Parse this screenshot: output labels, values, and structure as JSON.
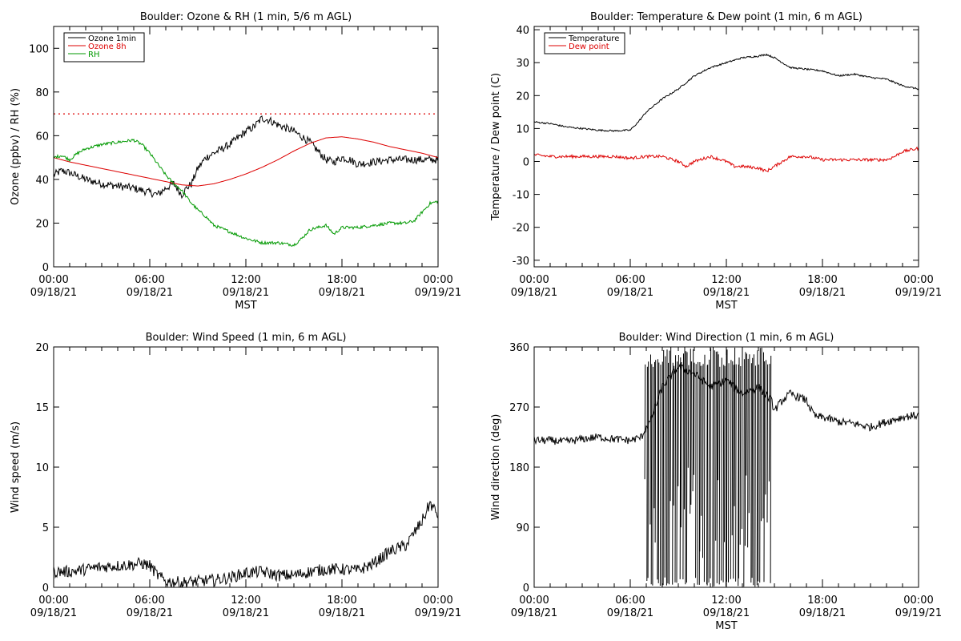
{
  "chart_data": [
    {
      "id": "ozone",
      "type": "line",
      "title": "Boulder: Ozone & RH (1 min, 5/6 m AGL)",
      "xlabel": "MST",
      "ylabel": "Ozone (ppbv) / RH (%)",
      "xlim": [
        0,
        24
      ],
      "ylim": [
        0,
        110
      ],
      "yticks": [
        0,
        20,
        40,
        60,
        80,
        100
      ],
      "xticks": [
        {
          "h": 0,
          "time": "00:00",
          "date": "09/18/21"
        },
        {
          "h": 6,
          "time": "06:00",
          "date": "09/18/21"
        },
        {
          "h": 12,
          "time": "12:00",
          "date": "09/18/21"
        },
        {
          "h": 18,
          "time": "18:00",
          "date": "09/18/21"
        },
        {
          "h": 24,
          "time": "00:00",
          "date": "09/19/21"
        }
      ],
      "legend_position": "top-left",
      "reference_line": {
        "y": 70,
        "color": "#dd0000",
        "style": "dotted"
      },
      "series": [
        {
          "name": "Ozone 1min",
          "color": "#000000",
          "noise": 1.8,
          "x": [
            0,
            0.5,
            1,
            2,
            3,
            4,
            5,
            6,
            6.5,
            7,
            7.5,
            8,
            8.3,
            8.6,
            9,
            9.5,
            10,
            11,
            12,
            12.5,
            13,
            13.5,
            14,
            15,
            16,
            16.5,
            17,
            17.5,
            18,
            18.5,
            19,
            20,
            21,
            22,
            23,
            24
          ],
          "y": [
            42,
            44,
            43,
            40,
            38,
            37,
            36,
            34,
            33,
            36,
            38,
            33,
            36,
            38,
            45,
            50,
            52,
            56,
            62,
            64,
            68,
            67,
            65,
            62,
            57,
            53,
            49,
            48,
            50,
            49,
            47,
            48,
            49,
            49,
            49,
            49
          ]
        },
        {
          "name": "Ozone 8h",
          "color": "#dd0000",
          "noise": 0,
          "x": [
            0,
            1,
            2,
            3,
            4,
            5,
            6,
            7,
            8,
            9,
            10,
            11,
            12,
            13,
            14,
            15,
            16,
            17,
            18,
            19,
            20,
            21,
            22,
            23,
            24
          ],
          "y": [
            50,
            48,
            46.5,
            45,
            43.5,
            42,
            40.5,
            39,
            37.5,
            37,
            38,
            40,
            42.5,
            45.5,
            49,
            53,
            56.5,
            59,
            59.5,
            58.5,
            57,
            55,
            53.5,
            52,
            50
          ]
        },
        {
          "name": "RH",
          "color": "#009900",
          "noise": 0.7,
          "x": [
            0,
            0.5,
            1,
            1.5,
            2,
            3,
            4,
            5,
            5.5,
            6,
            6.5,
            7,
            7.5,
            8,
            8.5,
            9,
            9.5,
            10,
            11,
            12,
            12.5,
            13,
            14,
            15,
            15.5,
            16,
            17,
            17.5,
            18,
            19,
            20,
            21,
            22,
            22.5,
            23,
            23.5,
            24
          ],
          "y": [
            50,
            51,
            49,
            52,
            54,
            56,
            57,
            58,
            56,
            52,
            47,
            42,
            38,
            35,
            30,
            26,
            23,
            19,
            16,
            13,
            12,
            11,
            11,
            10,
            13,
            17,
            19,
            15,
            18,
            18,
            19,
            20,
            20,
            21,
            25,
            29,
            30
          ]
        }
      ]
    },
    {
      "id": "temp",
      "type": "line",
      "title": "Boulder: Temperature & Dew point (1 min, 6 m AGL)",
      "xlabel": "MST",
      "ylabel": "Temperature / Dew point (C)",
      "xlim": [
        0,
        24
      ],
      "ylim": [
        -32,
        41
      ],
      "yticks": [
        -30,
        -20,
        -10,
        0,
        10,
        20,
        30,
        40
      ],
      "xticks": [
        {
          "h": 0,
          "time": "00:00",
          "date": "09/18/21"
        },
        {
          "h": 6,
          "time": "06:00",
          "date": "09/18/21"
        },
        {
          "h": 12,
          "time": "12:00",
          "date": "09/18/21"
        },
        {
          "h": 18,
          "time": "18:00",
          "date": "09/18/21"
        },
        {
          "h": 24,
          "time": "00:00",
          "date": "09/19/21"
        }
      ],
      "legend_position": "top-left",
      "series": [
        {
          "name": "Temperature",
          "color": "#000000",
          "noise": 0.25,
          "x": [
            0,
            1,
            2,
            3,
            4,
            5,
            6,
            6.5,
            7,
            8,
            9,
            10,
            11,
            12,
            13,
            14,
            14.5,
            15,
            15.5,
            16,
            17,
            18,
            19,
            20,
            21,
            22,
            23,
            24
          ],
          "y": [
            12,
            11.5,
            10.5,
            10,
            9.5,
            9.3,
            9.5,
            12,
            15,
            19,
            22,
            26,
            28.5,
            30,
            31.5,
            32,
            32.5,
            31.5,
            30,
            28.5,
            28,
            27.5,
            26,
            26.5,
            25.5,
            25,
            23,
            22
          ]
        },
        {
          "name": "Dew point",
          "color": "#dd0000",
          "noise": 0.45,
          "x": [
            0,
            1,
            2,
            3,
            4,
            5,
            6,
            7,
            8,
            9,
            9.5,
            10,
            11,
            12,
            12.5,
            13,
            14,
            14.5,
            15,
            15.5,
            16,
            17,
            18,
            19,
            20,
            21,
            22,
            22.5,
            23,
            24
          ],
          "y": [
            2,
            1.5,
            1.5,
            1.5,
            1.5,
            1.5,
            1,
            1.5,
            1.5,
            0,
            -1.5,
            0,
            1.5,
            0,
            -1.5,
            -1.5,
            -2,
            -3,
            -1.5,
            0,
            1.5,
            1.5,
            0.5,
            0.5,
            0.5,
            0.5,
            0.5,
            1.5,
            3,
            4
          ]
        }
      ]
    },
    {
      "id": "wspd",
      "type": "line",
      "title": "Boulder: Wind Speed (1 min, 6 m AGL)",
      "xlabel": "",
      "ylabel": "Wind speed (m/s)",
      "xlim": [
        0,
        24
      ],
      "ylim": [
        0,
        20
      ],
      "yticks": [
        0,
        5,
        10,
        15,
        20
      ],
      "xticks": [
        {
          "h": 0,
          "time": "00:00",
          "date": "09/18/21"
        },
        {
          "h": 6,
          "time": "06:00",
          "date": "09/18/21"
        },
        {
          "h": 12,
          "time": "12:00",
          "date": "09/18/21"
        },
        {
          "h": 18,
          "time": "18:00",
          "date": "09/18/21"
        },
        {
          "h": 24,
          "time": "00:00",
          "date": "09/19/21"
        }
      ],
      "series": [
        {
          "name": "",
          "color": "#000000",
          "noise": 0.5,
          "x": [
            0,
            1,
            2,
            3,
            4,
            5,
            5.5,
            6,
            6.5,
            7,
            8,
            9,
            10,
            11,
            12,
            13,
            14,
            15,
            16,
            17,
            18,
            19,
            20,
            21,
            22,
            22.5,
            23,
            23.5,
            24
          ],
          "y": [
            1.3,
            1.3,
            1.5,
            1.7,
            1.8,
            1.9,
            2,
            1.8,
            1,
            0.5,
            0.4,
            0.5,
            0.6,
            0.8,
            1.2,
            1.3,
            1,
            1,
            1.3,
            1.5,
            1.5,
            1.4,
            2,
            3,
            3.5,
            4.5,
            5.5,
            7,
            6
          ]
        }
      ]
    },
    {
      "id": "wdir",
      "type": "line",
      "title": "Boulder: Wind Direction (1 min, 6 m AGL)",
      "xlabel": "MST",
      "ylabel": "Wind direction (deg)",
      "xlim": [
        0,
        24
      ],
      "ylim": [
        0,
        360
      ],
      "yticks": [
        0,
        90,
        180,
        270,
        360
      ],
      "xticks": [
        {
          "h": 0,
          "time": "00:00",
          "date": "09/18/21"
        },
        {
          "h": 6,
          "time": "06:00",
          "date": "09/18/21"
        },
        {
          "h": 12,
          "time": "12:00",
          "date": "09/18/21"
        },
        {
          "h": 18,
          "time": "18:00",
          "date": "09/18/21"
        },
        {
          "h": 24,
          "time": "00:00",
          "date": "09/19/21"
        }
      ],
      "series": [
        {
          "name": "",
          "color": "#000000",
          "noise": 6,
          "x": [
            0,
            1,
            2,
            3,
            4,
            5,
            6,
            6.7,
            7,
            7.3,
            7.5,
            8,
            9,
            10,
            11,
            12,
            13,
            14,
            14.8,
            15,
            15.5,
            16,
            16.5,
            17,
            17.3,
            17.6,
            18,
            19,
            20,
            21,
            22,
            23,
            24
          ],
          "y": [
            220,
            220,
            218,
            222,
            225,
            222,
            220,
            225,
            240,
            250,
            265,
            300,
            330,
            320,
            300,
            310,
            290,
            300,
            280,
            265,
            280,
            290,
            285,
            280,
            265,
            255,
            255,
            248,
            245,
            240,
            248,
            255,
            258
          ]
        }
      ],
      "spikes": {
        "start": 6.9,
        "end": 14.8,
        "count": 85,
        "color": "#000000"
      }
    }
  ]
}
